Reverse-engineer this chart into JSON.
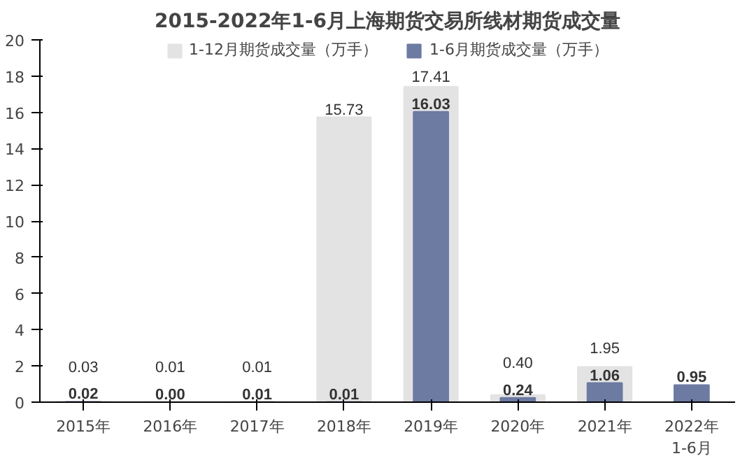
{
  "chart_data": {
    "type": "bar",
    "title": "2015-2022年1-6月上海期货交易所线材期货成交量",
    "categories": [
      "2015年",
      "2016年",
      "2017年",
      "2018年",
      "2019年",
      "2020年",
      "2021年",
      "2022年\n1-6月"
    ],
    "series": [
      {
        "name": "1-12月期货成交量（万手）",
        "color": "#e3e3e3",
        "values": [
          0.03,
          0.01,
          0.01,
          15.73,
          17.41,
          0.4,
          1.95,
          null
        ],
        "value_labels": [
          "0.03",
          "0.01",
          "0.01",
          "15.73",
          "17.41",
          "0.40",
          "1.95",
          null
        ]
      },
      {
        "name": "1-6月期货成交量（万手）",
        "color": "#6d7aa2",
        "values": [
          0.02,
          0.0,
          0.01,
          0.01,
          16.03,
          0.24,
          1.06,
          0.95
        ],
        "value_labels": [
          "0.02",
          "0.00",
          "0.01",
          "0.01",
          "16.03",
          "0.24",
          "1.06",
          "0.95"
        ]
      }
    ],
    "ylim": [
      0,
      20
    ],
    "yticks": [
      0,
      2,
      4,
      6,
      8,
      10,
      12,
      14,
      16,
      18,
      20
    ],
    "grid": false,
    "legend": "top"
  }
}
